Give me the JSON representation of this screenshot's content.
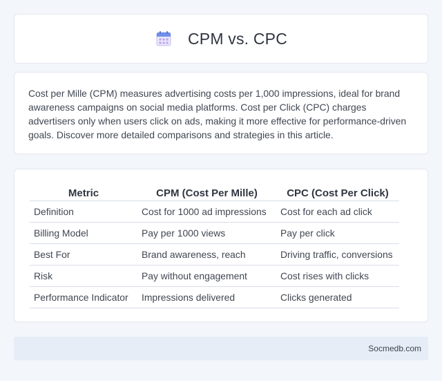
{
  "header": {
    "title": "CPM vs. CPC",
    "icon": "calendar-icon"
  },
  "intro": {
    "text": "Cost per Mille (CPM) measures advertising costs per 1,000 impressions, ideal for brand awareness campaigns on social media platforms. Cost per Click (CPC) charges advertisers only when users click on ads, making it more effective for performance-driven goals. Discover more detailed comparisons and strategies in this article."
  },
  "table": {
    "headers": [
      "Metric",
      "CPM (Cost Per Mille)",
      "CPC (Cost Per Click)"
    ],
    "rows": [
      [
        "Definition",
        "Cost for 1000 ad impressions",
        "Cost for each ad click"
      ],
      [
        "Billing Model",
        "Pay per 1000 views",
        "Pay per click"
      ],
      [
        "Best For",
        "Brand awareness, reach",
        "Driving traffic, conversions"
      ],
      [
        "Risk",
        "Pay without engagement",
        "Cost rises with clicks"
      ],
      [
        "Performance Indicator",
        "Impressions delivered",
        "Clicks generated"
      ]
    ]
  },
  "footer": {
    "text": "Socmedb.com"
  },
  "colors": {
    "background": "#f3f6fa",
    "footer_bg": "#e6edf7",
    "icon_top": "#6f8fe8",
    "icon_grid": "#c7b8ee"
  }
}
